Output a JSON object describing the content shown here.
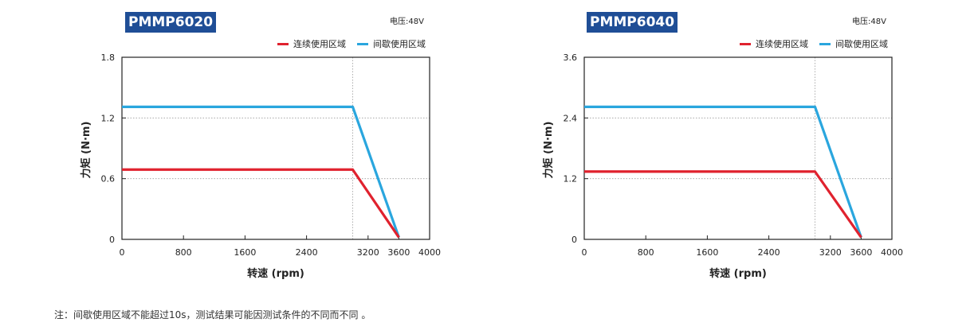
{
  "chart_data": [
    {
      "type": "line",
      "title": "PMMP6020",
      "voltage_label": "电压:48V",
      "xlabel": "转速 (rpm)",
      "ylabel": "力矩 (N·m)",
      "xlim": [
        0,
        4000
      ],
      "ylim": [
        0,
        1.8
      ],
      "xticks": [
        "0",
        "800",
        "1600",
        "2400",
        "3200",
        "3600",
        "4000"
      ],
      "xtick_values": [
        0,
        800,
        1600,
        2400,
        3200,
        3600,
        4000
      ],
      "yticks": [
        "0",
        "0.6",
        "1.2",
        "1.8"
      ],
      "ytick_values": [
        0,
        0.6,
        1.2,
        1.8
      ],
      "ref_line_x": 3000,
      "legend_position": "top-right",
      "series": [
        {
          "name": "连续使用区域",
          "color": "#e0222e",
          "x": [
            0,
            3000,
            3600
          ],
          "y": [
            0.69,
            0.69,
            0.02
          ]
        },
        {
          "name": "间歇使用区域",
          "color": "#2aa6de",
          "x": [
            0,
            3000,
            3600
          ],
          "y": [
            1.31,
            1.31,
            0.02
          ]
        }
      ]
    },
    {
      "type": "line",
      "title": "PMMP6040",
      "voltage_label": "电压:48V",
      "xlabel": "转速 (rpm)",
      "ylabel": "力矩 (N·m)",
      "xlim": [
        0,
        4000
      ],
      "ylim": [
        0,
        3.6
      ],
      "xticks": [
        "0",
        "800",
        "1600",
        "2400",
        "3200",
        "3600",
        "4000"
      ],
      "xtick_values": [
        0,
        800,
        1600,
        2400,
        3200,
        3600,
        4000
      ],
      "yticks": [
        "0",
        "1.2",
        "2.4",
        "3.6"
      ],
      "ytick_values": [
        0,
        1.2,
        2.4,
        3.6
      ],
      "ref_line_x": 3000,
      "legend_position": "top-right",
      "series": [
        {
          "name": "连续使用区域",
          "color": "#e0222e",
          "x": [
            0,
            3000,
            3600
          ],
          "y": [
            1.34,
            1.34,
            0.04
          ]
        },
        {
          "name": "间歇使用区域",
          "color": "#2aa6de",
          "x": [
            0,
            3000,
            3600
          ],
          "y": [
            2.62,
            2.62,
            0.04
          ]
        }
      ]
    }
  ],
  "footnote": "注：间歇使用区域不能超过10s，测试结果可能因测试条件的不同而不同 。"
}
